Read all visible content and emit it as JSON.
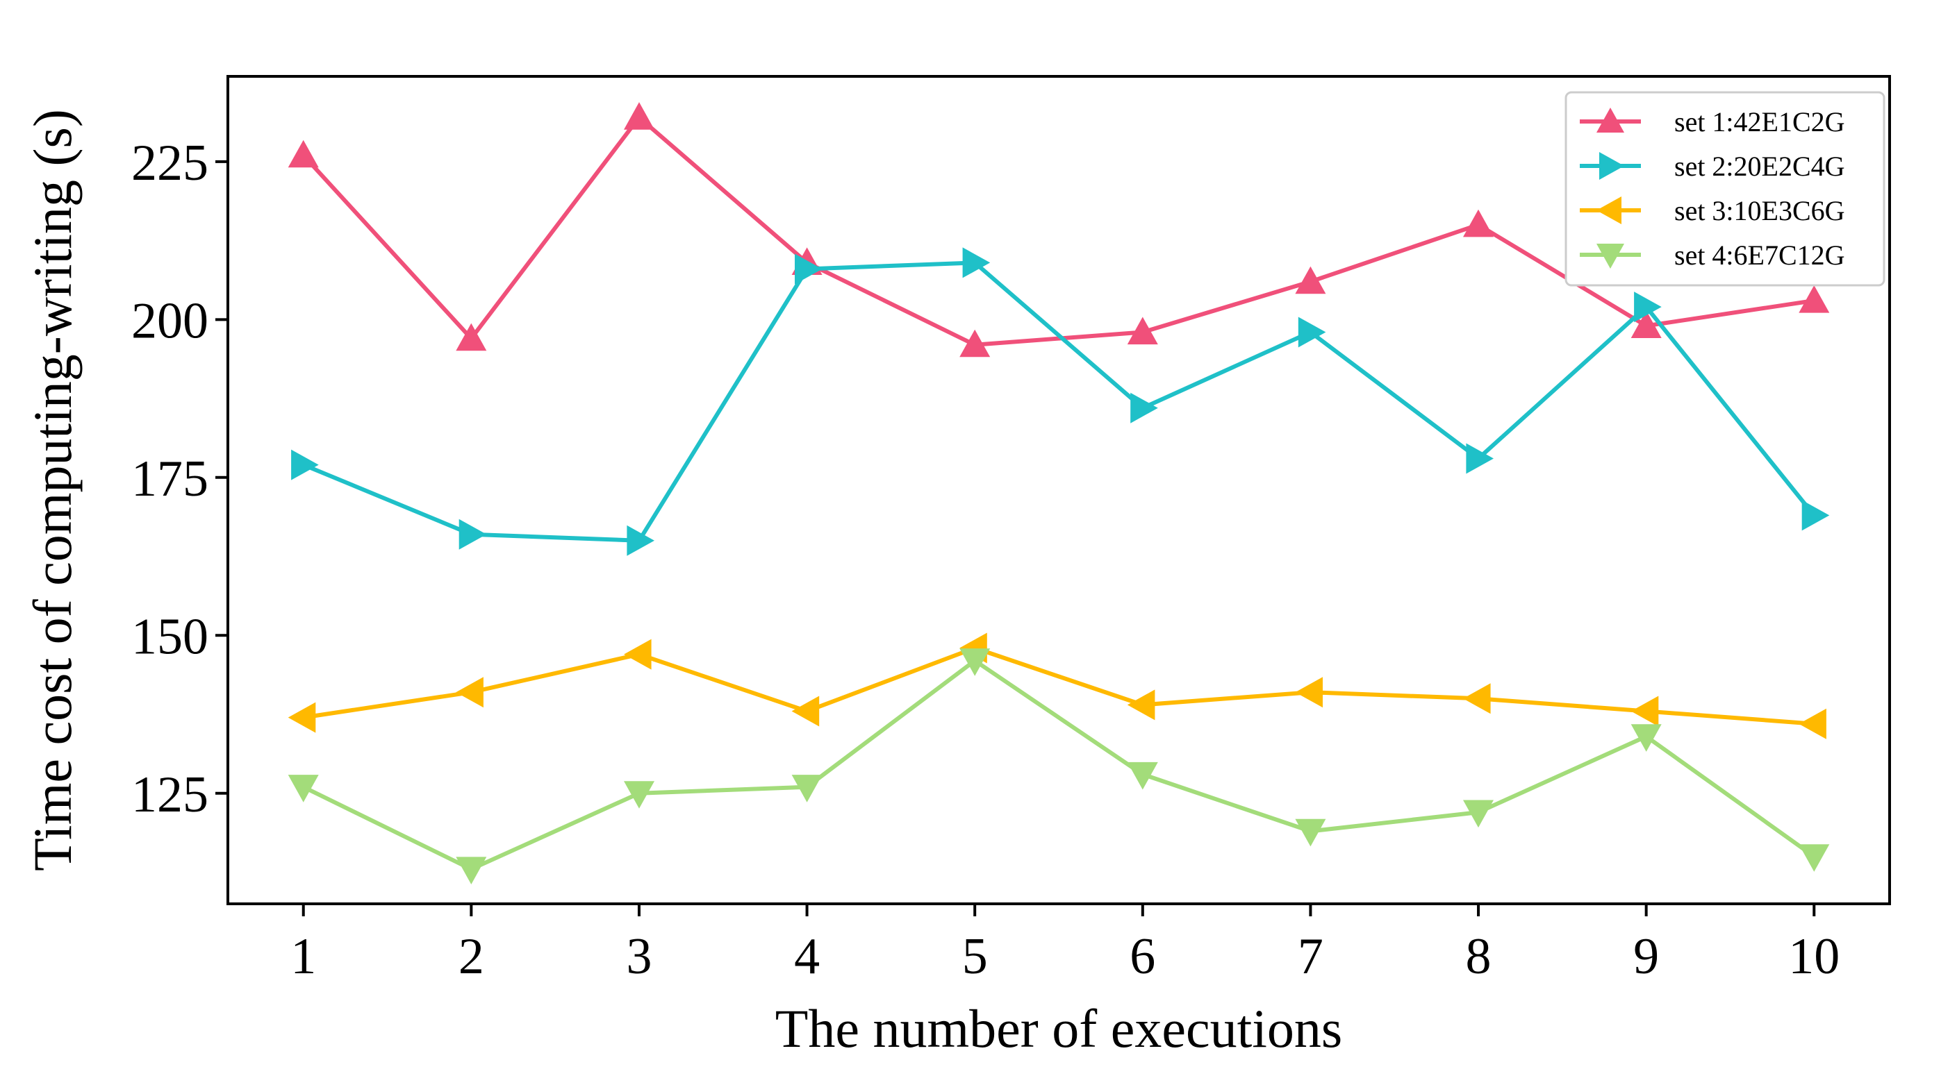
{
  "chart_data": {
    "type": "line",
    "title": "",
    "xlabel": "The number of executions",
    "ylabel": "Time cost of computing-writing (s)",
    "x": [
      1,
      2,
      3,
      4,
      5,
      6,
      7,
      8,
      9,
      10
    ],
    "xticks": [
      "1",
      "2",
      "3",
      "4",
      "5",
      "6",
      "7",
      "8",
      "9",
      "10"
    ],
    "yticks": [
      125,
      150,
      175,
      200,
      225
    ],
    "xlim": [
      0.55,
      10.45
    ],
    "ylim": [
      107.5,
      238.5
    ],
    "grid": false,
    "legend_position": "top-right",
    "series": [
      {
        "name": "set 1:42E1C2G",
        "color": "#f0507a",
        "marker": "triangle-up",
        "values": [
          226,
          197,
          232,
          209,
          196,
          198,
          206,
          215,
          199,
          203
        ]
      },
      {
        "name": "set 2:20E2C4G",
        "color": "#1fc0c8",
        "marker": "triangle-right",
        "values": [
          177,
          166,
          165,
          208,
          209,
          186,
          198,
          178,
          202,
          169
        ]
      },
      {
        "name": "set 3:10E3C6G",
        "color": "#ffb900",
        "marker": "triangle-left",
        "values": [
          137,
          141,
          147,
          138,
          148,
          139,
          141,
          140,
          138,
          136
        ]
      },
      {
        "name": "set 4:6E7C12G",
        "color": "#a3dc7a",
        "marker": "triangle-down",
        "values": [
          126,
          113,
          125,
          126,
          146,
          128,
          119,
          122,
          134,
          115
        ]
      }
    ]
  }
}
